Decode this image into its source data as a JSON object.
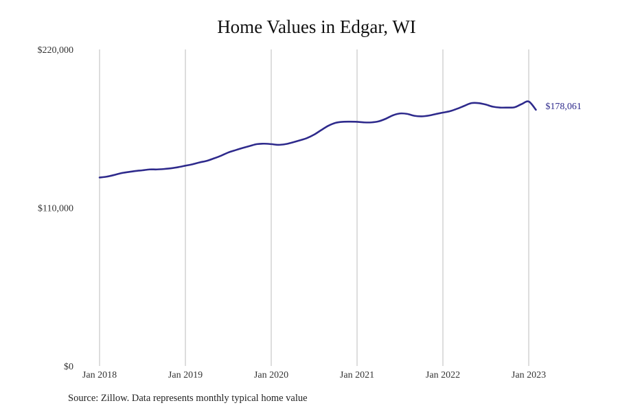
{
  "chart_data": {
    "type": "line",
    "title": "Home Values in Edgar, WI",
    "xlabel": "",
    "ylabel": "",
    "x_tick_labels": [
      "Jan 2018",
      "Jan 2019",
      "Jan 2020",
      "Jan 2021",
      "Jan 2022",
      "Jan 2023"
    ],
    "y_tick_labels": [
      "$0",
      "$110,000",
      "$220,000"
    ],
    "y_ticks": [
      0,
      110000,
      220000
    ],
    "ylim": [
      0,
      220000
    ],
    "xlim": [
      "2018-01",
      "2023-05"
    ],
    "grid": "vertical",
    "legend": "none",
    "end_label": "$178,061",
    "series": [
      {
        "color": "#2e2a8c",
        "x": [
          "2018-01",
          "2018-02",
          "2018-03",
          "2018-04",
          "2018-05",
          "2018-06",
          "2018-07",
          "2018-08",
          "2018-09",
          "2018-10",
          "2018-11",
          "2018-12",
          "2019-01",
          "2019-02",
          "2019-03",
          "2019-04",
          "2019-05",
          "2019-06",
          "2019-07",
          "2019-08",
          "2019-09",
          "2019-10",
          "2019-11",
          "2019-12",
          "2020-01",
          "2020-02",
          "2020-03",
          "2020-04",
          "2020-05",
          "2020-06",
          "2020-07",
          "2020-08",
          "2020-09",
          "2020-10",
          "2020-11",
          "2020-12",
          "2021-01",
          "2021-02",
          "2021-03",
          "2021-04",
          "2021-05",
          "2021-06",
          "2021-07",
          "2021-08",
          "2021-09",
          "2021-10",
          "2021-11",
          "2021-12",
          "2022-01",
          "2022-02",
          "2022-03",
          "2022-04",
          "2022-05",
          "2022-06",
          "2022-07",
          "2022-08",
          "2022-09",
          "2022-10",
          "2022-11",
          "2022-12",
          "2023-01",
          "2023-02"
        ],
        "values": [
          131000,
          131600,
          132700,
          134000,
          134800,
          135500,
          136000,
          136600,
          136600,
          136900,
          137400,
          138200,
          139200,
          140200,
          141500,
          142600,
          144300,
          146200,
          148400,
          150000,
          151500,
          152900,
          154200,
          154500,
          154200,
          153700,
          154200,
          155400,
          156800,
          158400,
          160800,
          164000,
          167000,
          169000,
          169700,
          169800,
          169700,
          169300,
          169300,
          170000,
          171800,
          174200,
          175500,
          175200,
          173900,
          173500,
          174000,
          175100,
          176100,
          177100,
          178800,
          180800,
          182700,
          182700,
          181700,
          180200,
          179600,
          179600,
          179800,
          182000,
          183800,
          178061
        ]
      }
    ],
    "line_color": "#2e2a8c",
    "grid_color": "#bbbbbb"
  },
  "source_note": "Source: Zillow. Data represents monthly typical home value"
}
